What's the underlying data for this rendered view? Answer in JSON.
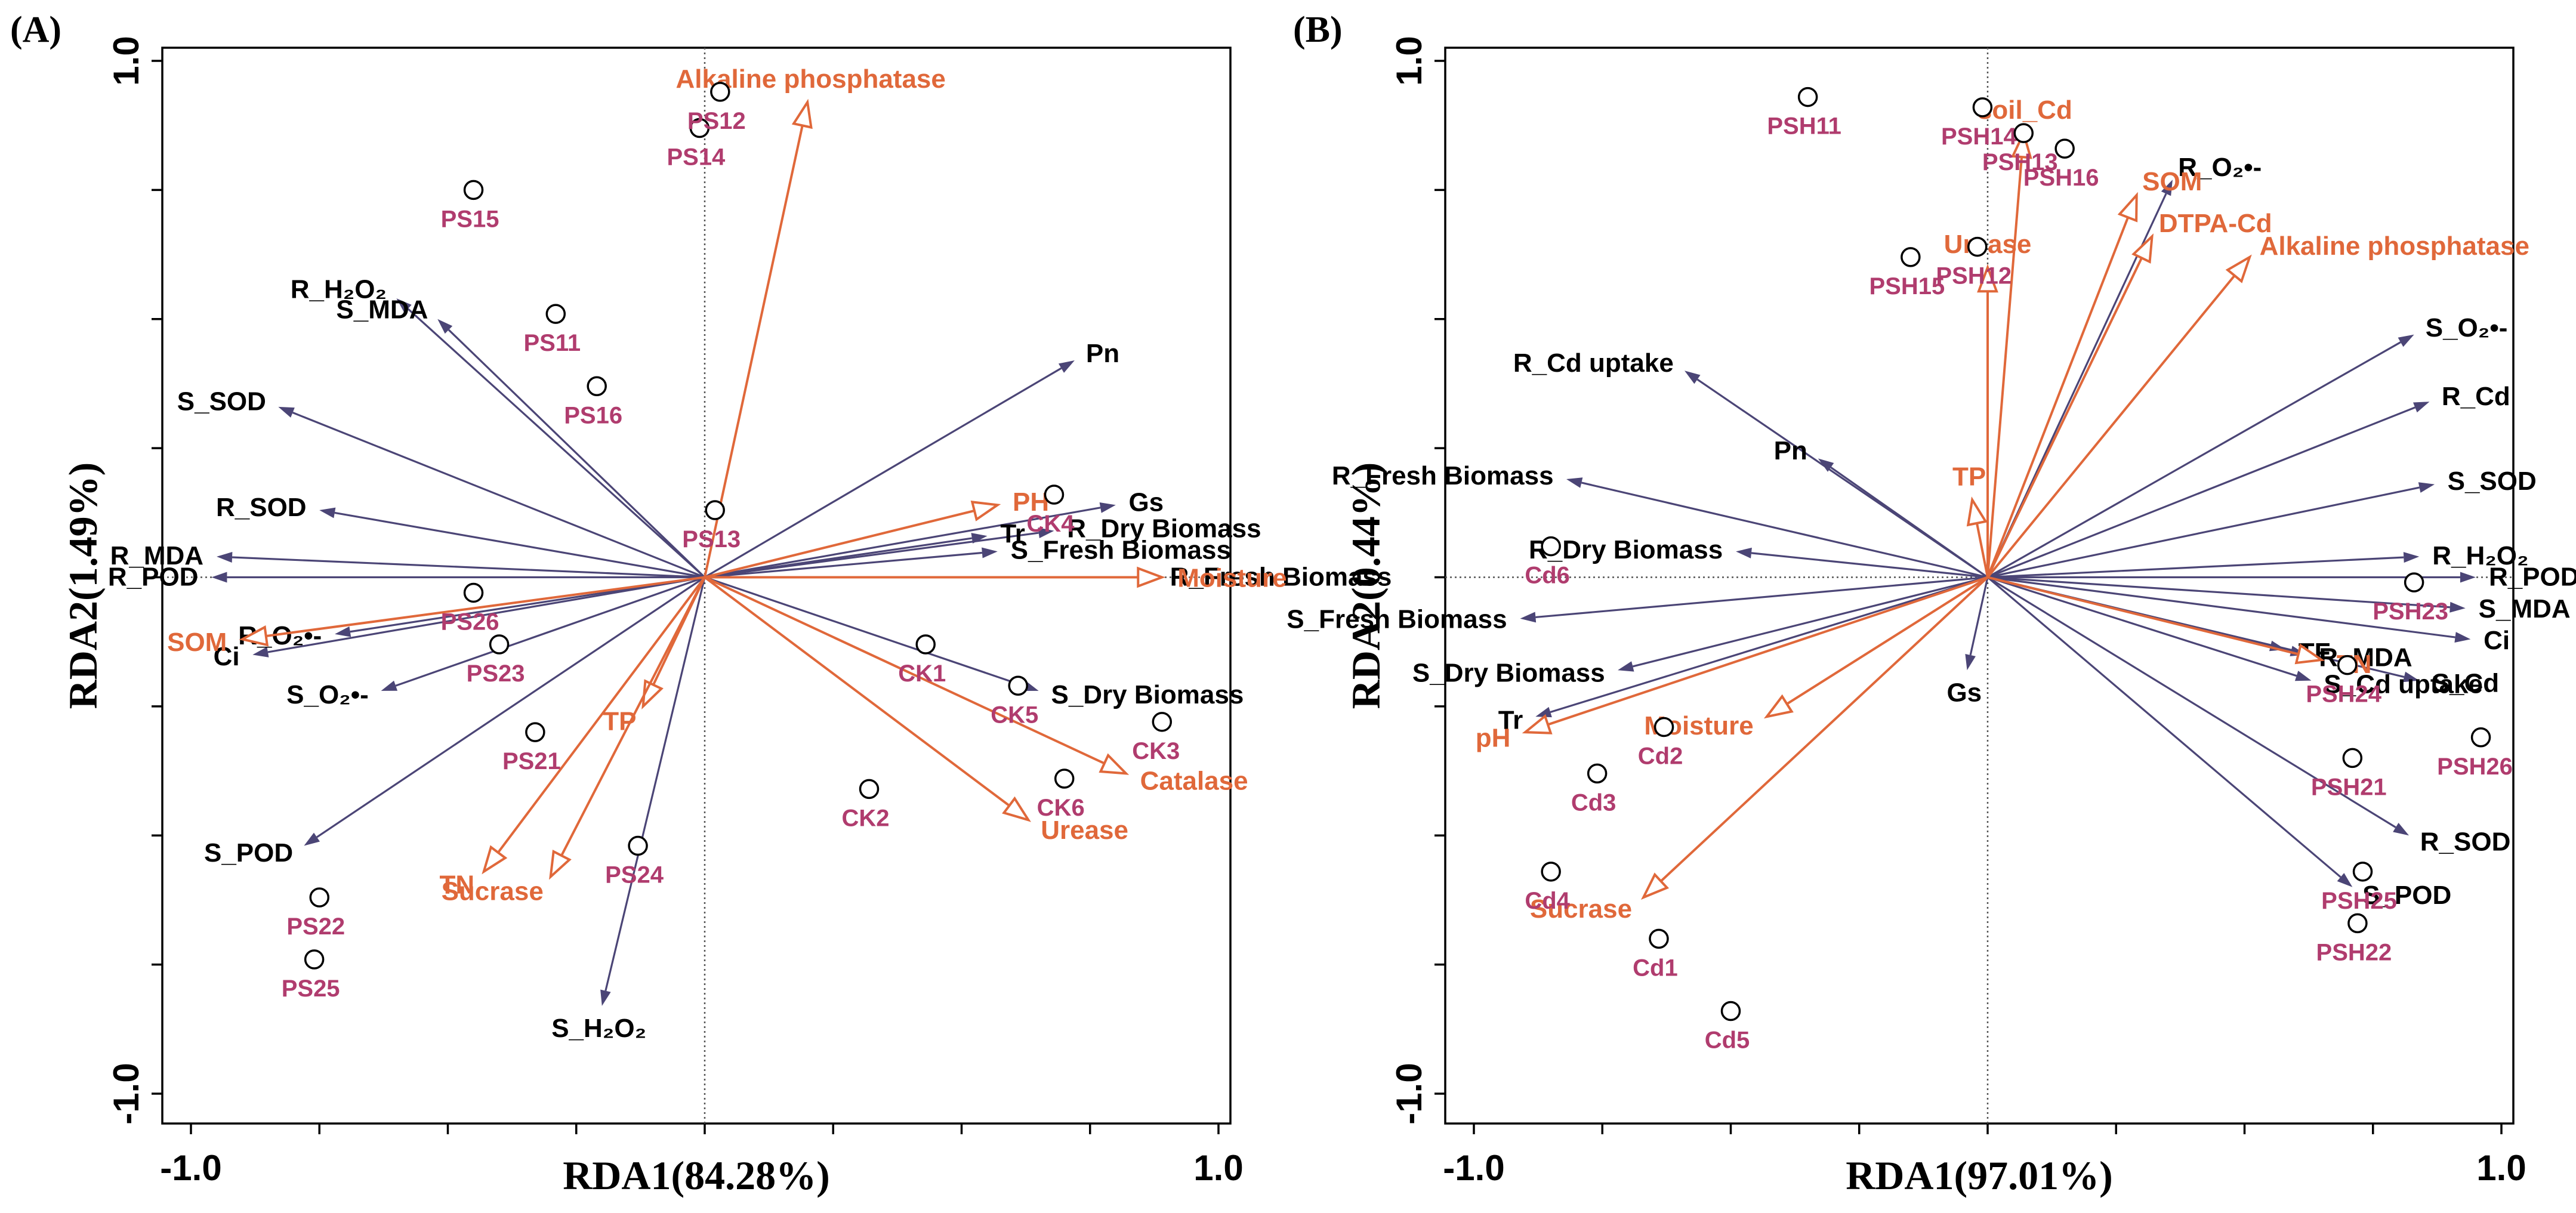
{
  "colors": {
    "plant_vector": "#4b4576",
    "soil_vector": "#e0683a",
    "site_label": "#b03c6e",
    "plant_label": "#000000",
    "soil_label": "#e0683a"
  },
  "chart_data": [
    {
      "type": "scatter",
      "subtype": "rda-biplot",
      "panel_label": "(A)",
      "xlabel": "RDA1(84.28%)",
      "ylabel": "RDA2(1.49%)",
      "xlim": [
        -1.0,
        1.0
      ],
      "ylim": [
        -1.0,
        1.0
      ],
      "xticks": [
        "-1.0",
        "1.0"
      ],
      "yticks": [
        "-1.0",
        "1.0"
      ],
      "plant_vectors": [
        {
          "name": "R_H₂O₂",
          "x": -0.6,
          "y": 0.54
        },
        {
          "name": "S_MDA",
          "x": -0.52,
          "y": 0.5
        },
        {
          "name": "S_SOD",
          "x": -0.83,
          "y": 0.33
        },
        {
          "name": "R_SOD",
          "x": -0.75,
          "y": 0.13
        },
        {
          "name": "R_MDA",
          "x": -0.95,
          "y": 0.04
        },
        {
          "name": "R_POD",
          "x": -0.96,
          "y": 0.0
        },
        {
          "name": "Ci",
          "x": -0.88,
          "y": -0.15
        },
        {
          "name": "R_O₂•-",
          "x": -0.72,
          "y": -0.11
        },
        {
          "name": "S_O₂•-",
          "x": -0.63,
          "y": -0.22
        },
        {
          "name": "S_POD",
          "x": -0.78,
          "y": -0.52
        },
        {
          "name": "S_H₂O₂",
          "x": -0.2,
          "y": -0.83
        },
        {
          "name": "Pn",
          "x": 0.72,
          "y": 0.42
        },
        {
          "name": "Gs",
          "x": 0.8,
          "y": 0.14
        },
        {
          "name": "R_Dry Biomass",
          "x": 0.68,
          "y": 0.09
        },
        {
          "name": "Tr",
          "x": 0.55,
          "y": 0.08
        },
        {
          "name": "S_Fresh Biomass",
          "x": 0.57,
          "y": 0.05
        },
        {
          "name": "R_Fresh Biomass",
          "x": 0.88,
          "y": 0.0
        },
        {
          "name": "S_Dry Biomass",
          "x": 0.65,
          "y": -0.22
        }
      ],
      "soil_vectors": [
        {
          "name": "Alkaline phosphatase",
          "x": 0.2,
          "y": 0.92
        },
        {
          "name": "PH",
          "x": 0.57,
          "y": 0.14
        },
        {
          "name": "Moisture",
          "x": 0.89,
          "y": 0.0
        },
        {
          "name": "Catalase",
          "x": 0.82,
          "y": -0.38
        },
        {
          "name": "Urease",
          "x": 0.63,
          "y": -0.47
        },
        {
          "name": "SOM",
          "x": -0.9,
          "y": -0.12
        },
        {
          "name": "TP",
          "x": -0.12,
          "y": -0.25
        },
        {
          "name": "TN",
          "x": -0.43,
          "y": -0.57
        },
        {
          "name": "Sucrase",
          "x": -0.3,
          "y": -0.58
        }
      ],
      "sites": [
        {
          "name": "PS14",
          "x": -0.01,
          "y": 0.87
        },
        {
          "name": "PS12",
          "x": 0.03,
          "y": 0.94
        },
        {
          "name": "PS15",
          "x": -0.45,
          "y": 0.75
        },
        {
          "name": "PS11",
          "x": -0.29,
          "y": 0.51
        },
        {
          "name": "PS16",
          "x": -0.21,
          "y": 0.37
        },
        {
          "name": "PS13",
          "x": 0.02,
          "y": 0.13
        },
        {
          "name": "PS26",
          "x": -0.45,
          "y": -0.03
        },
        {
          "name": "PS23",
          "x": -0.4,
          "y": -0.13
        },
        {
          "name": "PS21",
          "x": -0.33,
          "y": -0.3
        },
        {
          "name": "PS24",
          "x": -0.13,
          "y": -0.52
        },
        {
          "name": "PS22",
          "x": -0.75,
          "y": -0.62
        },
        {
          "name": "PS25",
          "x": -0.76,
          "y": -0.74
        },
        {
          "name": "CK4",
          "x": 0.68,
          "y": 0.16
        },
        {
          "name": "CK1",
          "x": 0.43,
          "y": -0.13
        },
        {
          "name": "CK5",
          "x": 0.61,
          "y": -0.21
        },
        {
          "name": "CK3",
          "x": 0.89,
          "y": -0.28
        },
        {
          "name": "CK6",
          "x": 0.7,
          "y": -0.39
        },
        {
          "name": "CK2",
          "x": 0.32,
          "y": -0.41
        }
      ]
    },
    {
      "type": "scatter",
      "subtype": "rda-biplot",
      "panel_label": "(B)",
      "xlabel": "RDA1(97.01%)",
      "ylabel": "RDA2(0.44%)",
      "xlim": [
        -1.0,
        1.0
      ],
      "ylim": [
        -1.0,
        1.0
      ],
      "xticks": [
        "-1.0",
        "1.0"
      ],
      "yticks": [
        "-1.0",
        "1.0"
      ],
      "plant_vectors": [
        {
          "name": "R_O₂•-",
          "x": 0.36,
          "y": 0.77
        },
        {
          "name": "S_O₂•-",
          "x": 0.83,
          "y": 0.47
        },
        {
          "name": "R_Cd",
          "x": 0.86,
          "y": 0.34
        },
        {
          "name": "S_SOD",
          "x": 0.87,
          "y": 0.18
        },
        {
          "name": "R_H₂O₂",
          "x": 0.84,
          "y": 0.04
        },
        {
          "name": "R_POD",
          "x": 0.95,
          "y": 0.0
        },
        {
          "name": "S_MDA",
          "x": 0.93,
          "y": -0.06
        },
        {
          "name": "Ci",
          "x": 0.94,
          "y": -0.12
        },
        {
          "name": "S_Cd",
          "x": 0.84,
          "y": -0.2
        },
        {
          "name": "R_SOD",
          "x": 0.82,
          "y": -0.5
        },
        {
          "name": "S_POD",
          "x": 0.71,
          "y": -0.6
        },
        {
          "name": "R_MDA",
          "x": 0.62,
          "y": -0.15
        },
        {
          "name": "S_Cd uptake",
          "x": 0.63,
          "y": -0.2
        },
        {
          "name": "TF",
          "x": 0.58,
          "y": -0.14
        },
        {
          "name": "R_Cd uptake",
          "x": -0.59,
          "y": 0.4
        },
        {
          "name": "Pn",
          "x": -0.33,
          "y": 0.23
        },
        {
          "name": "R_Fresh Biomass",
          "x": -0.82,
          "y": 0.19
        },
        {
          "name": "R_Dry Biomass",
          "x": -0.49,
          "y": 0.05
        },
        {
          "name": "S_Fresh Biomass",
          "x": -0.91,
          "y": -0.08
        },
        {
          "name": "S_Dry Biomass",
          "x": -0.72,
          "y": -0.18
        },
        {
          "name": "Tr",
          "x": -0.88,
          "y": -0.27
        },
        {
          "name": "Gs",
          "x": -0.04,
          "y": -0.18
        }
      ],
      "soil_vectors": [
        {
          "name": "soil_Cd",
          "x": 0.07,
          "y": 0.86
        },
        {
          "name": "SOM",
          "x": 0.29,
          "y": 0.74
        },
        {
          "name": "DTPA-Cd",
          "x": 0.32,
          "y": 0.66
        },
        {
          "name": "Alkaline phosphatase",
          "x": 0.51,
          "y": 0.62
        },
        {
          "name": "Urease",
          "x": 0.0,
          "y": 0.6
        },
        {
          "name": "TP",
          "x": -0.03,
          "y": 0.15
        },
        {
          "name": "TN",
          "x": 0.65,
          "y": -0.16
        },
        {
          "name": "pH",
          "x": -0.9,
          "y": -0.3
        },
        {
          "name": "Moisture",
          "x": -0.43,
          "y": -0.27
        },
        {
          "name": "Sucrase",
          "x": -0.67,
          "y": -0.62
        }
      ],
      "sites": [
        {
          "name": "PSH11",
          "x": -0.35,
          "y": 0.93
        },
        {
          "name": "PSH14",
          "x": -0.01,
          "y": 0.91
        },
        {
          "name": "PSH13",
          "x": 0.07,
          "y": 0.86
        },
        {
          "name": "PSH16",
          "x": 0.15,
          "y": 0.83
        },
        {
          "name": "PSH12",
          "x": -0.02,
          "y": 0.64
        },
        {
          "name": "PSH15",
          "x": -0.15,
          "y": 0.62
        },
        {
          "name": "Cd6",
          "x": -0.85,
          "y": 0.06
        },
        {
          "name": "PSH23",
          "x": 0.83,
          "y": -0.01
        },
        {
          "name": "PSH24",
          "x": 0.7,
          "y": -0.17
        },
        {
          "name": "PSH26",
          "x": 0.96,
          "y": -0.31
        },
        {
          "name": "PSH21",
          "x": 0.71,
          "y": -0.35
        },
        {
          "name": "PSH25",
          "x": 0.73,
          "y": -0.57
        },
        {
          "name": "PSH22",
          "x": 0.72,
          "y": -0.67
        },
        {
          "name": "Cd2",
          "x": -0.63,
          "y": -0.29
        },
        {
          "name": "Cd3",
          "x": -0.76,
          "y": -0.38
        },
        {
          "name": "Cd4",
          "x": -0.85,
          "y": -0.57
        },
        {
          "name": "Cd1",
          "x": -0.64,
          "y": -0.7
        },
        {
          "name": "Cd5",
          "x": -0.5,
          "y": -0.84
        }
      ]
    }
  ]
}
